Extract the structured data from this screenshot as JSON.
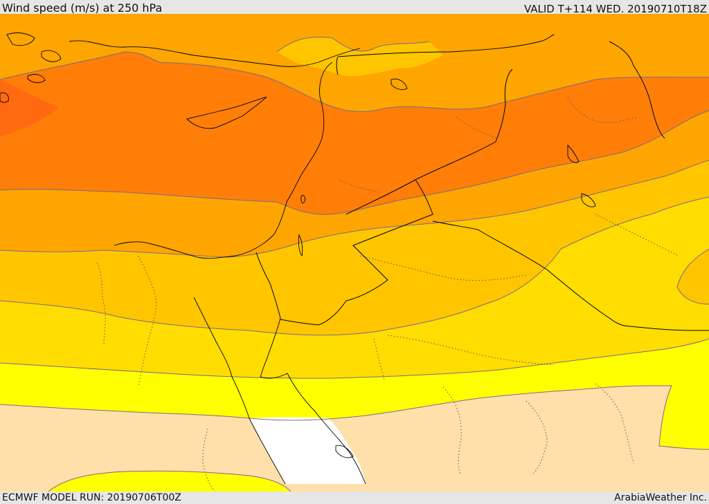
{
  "header": {
    "title": "Wind speed (m/s) at 250 hPa",
    "valid": "VALID T+114 WED. 20190710T18Z"
  },
  "footer": {
    "model_run": "ECMWF MODEL RUN: 20190706T00Z",
    "credit": "ArabiaWeather Inc."
  },
  "colors": {
    "band_darkest": "#ff6a10",
    "band_dark": "#ff7e08",
    "band_mid": "#ffa500",
    "band_light": "#ffc600",
    "band_lighter": "#ffdd00",
    "band_yellow": "#ffff00",
    "band_tan": "#ffdfaa",
    "calm": "#ffffff",
    "contour": "#7a6a8a",
    "coast": "#000000"
  }
}
